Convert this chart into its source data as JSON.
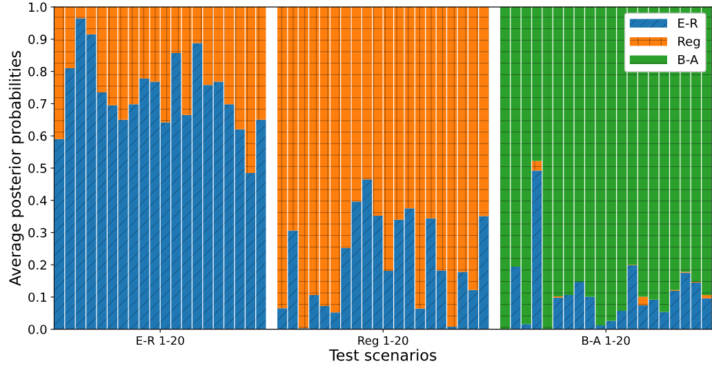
{
  "chart_data": {
    "type": "bar",
    "stacked": true,
    "xlabel": "Test scenarios",
    "ylabel": "Average posterior probabilities",
    "categories": [
      null,
      null,
      null,
      null,
      null,
      null,
      null,
      null,
      null,
      null,
      null,
      null,
      null,
      null,
      null,
      null,
      null,
      null,
      null,
      null,
      null,
      null,
      null,
      null,
      null,
      null,
      null,
      null,
      null,
      null,
      null,
      null,
      null,
      null,
      null,
      null,
      null,
      null,
      null,
      null,
      null,
      null,
      null,
      null,
      null,
      null,
      null,
      null,
      null,
      null,
      null,
      null,
      null,
      null,
      null,
      null,
      null,
      null,
      null,
      null,
      null,
      null
    ],
    "series": [
      {
        "name": "E-R",
        "color": "#1f77b4",
        "values": [
          0.59,
          0.81,
          0.965,
          0.915,
          0.735,
          0.695,
          0.65,
          0.698,
          0.778,
          0.768,
          0.642,
          0.857,
          0.665,
          0.888,
          0.758,
          0.768,
          0.698,
          0.62,
          0.485,
          0.65,
          null,
          0.065,
          0.306,
          0.003,
          0.106,
          0.072,
          0.052,
          0.252,
          0.396,
          0.465,
          0.352,
          0.181,
          0.34,
          0.375,
          0.064,
          0.344,
          0.182,
          0.008,
          0.178,
          0.122,
          0.351,
          null,
          0,
          0.194,
          0.016,
          0.492,
          0,
          0.098,
          0.106,
          0.147,
          0.101,
          0.012,
          0.026,
          0.057,
          0.198,
          0.074,
          0.092,
          0.054,
          0.119,
          0.175,
          0.145,
          0.096
        ]
      },
      {
        "name": "Reg",
        "color": "#ff7f0e",
        "values": [
          0.41,
          0.19,
          0.035,
          0.085,
          0.265,
          0.305,
          0.35,
          0.302,
          0.222,
          0.232,
          0.358,
          0.143,
          0.335,
          0.112,
          0.242,
          0.232,
          0.302,
          0.38,
          0.515,
          0.35,
          null,
          0.935,
          0.694,
          0.997,
          0.894,
          0.928,
          0.948,
          0.748,
          0.604,
          0.535,
          0.648,
          0.819,
          0.66,
          0.625,
          0.936,
          0.656,
          0.818,
          0.992,
          0.822,
          0.878,
          0.649,
          null,
          0,
          0,
          0,
          0.03,
          0,
          0.004,
          0,
          0,
          0,
          0,
          0,
          0,
          0.002,
          0.027,
          0,
          0,
          0.003,
          0.003,
          0.002,
          0.01
        ]
      },
      {
        "name": "B-A",
        "color": "#2ca02c",
        "values": [
          0,
          0,
          0,
          0,
          0,
          0,
          0,
          0,
          0,
          0,
          0,
          0,
          0,
          0,
          0,
          0,
          0,
          0,
          0,
          0,
          null,
          0,
          0,
          0,
          0,
          0,
          0,
          0,
          0,
          0,
          0,
          0,
          0,
          0,
          0,
          0,
          0,
          0,
          0,
          0,
          0,
          null,
          1,
          0.806,
          0.984,
          0.478,
          1,
          0.898,
          0.894,
          0.853,
          0.899,
          0.988,
          0.974,
          0.943,
          0.8,
          0.899,
          0.908,
          0.946,
          0.878,
          0.822,
          0.853,
          0.894
        ]
      }
    ],
    "annotations": [
      "E-R 1-20",
      "Reg 1-20",
      "B-A 1-20"
    ],
    "ylim": [
      0,
      1
    ],
    "yticks": [
      {
        "value": 0,
        "label": "0.0"
      },
      0.1,
      0.2,
      0.3,
      0.4,
      0.5,
      0.6,
      0.7,
      0.8,
      0.9,
      {
        "value": 1,
        "label": "1.0"
      }
    ],
    "grid": false,
    "legend": "top right"
  }
}
